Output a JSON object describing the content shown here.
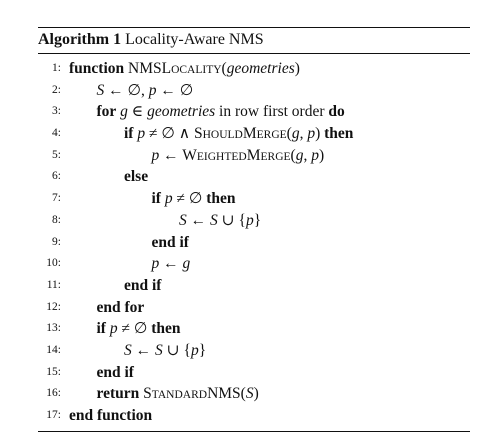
{
  "algorithm": {
    "label": "Algorithm 1",
    "title": "Locality-Aware NMS"
  },
  "lines": [
    {
      "no": "1:",
      "indent": 0,
      "parts": [
        {
          "t": "function",
          "s": "kw"
        },
        {
          "t": " NMS",
          "s": "rm"
        },
        {
          "t": "L",
          "s": "sc-big"
        },
        {
          "t": "OCALITY",
          "s": "sc-small"
        },
        {
          "t": "(",
          "s": "rm"
        },
        {
          "t": "geometries",
          "s": "m"
        },
        {
          "t": ")",
          "s": "rm"
        }
      ]
    },
    {
      "no": "2:",
      "indent": 1,
      "parts": [
        {
          "t": "S",
          "s": "m"
        },
        {
          "t": " ← ∅,  ",
          "s": "rm"
        },
        {
          "t": "p",
          "s": "m"
        },
        {
          "t": " ← ∅",
          "s": "rm"
        }
      ]
    },
    {
      "no": "3:",
      "indent": 1,
      "parts": [
        {
          "t": "for",
          "s": "kw"
        },
        {
          "t": " g",
          "s": "m"
        },
        {
          "t": " ∈ ",
          "s": "rm"
        },
        {
          "t": "geometries",
          "s": "m"
        },
        {
          "t": " in row first order ",
          "s": "rm"
        },
        {
          "t": "do",
          "s": "kw"
        }
      ]
    },
    {
      "no": "4:",
      "indent": 2,
      "parts": [
        {
          "t": "if",
          "s": "kw"
        },
        {
          "t": " p",
          "s": "m"
        },
        {
          "t": " ≠ ∅ ∧ ",
          "s": "rm"
        },
        {
          "t": "S",
          "s": "sc-big"
        },
        {
          "t": "HOULD",
          "s": "sc-small"
        },
        {
          "t": "M",
          "s": "sc-big"
        },
        {
          "t": "ERGE",
          "s": "sc-small"
        },
        {
          "t": "(",
          "s": "rm"
        },
        {
          "t": "g",
          "s": "m"
        },
        {
          "t": ", ",
          "s": "rm"
        },
        {
          "t": "p",
          "s": "m"
        },
        {
          "t": ") ",
          "s": "rm"
        },
        {
          "t": "then",
          "s": "kw"
        }
      ]
    },
    {
      "no": "5:",
      "indent": 3,
      "parts": [
        {
          "t": "p",
          "s": "m"
        },
        {
          "t": " ← ",
          "s": "rm"
        },
        {
          "t": "W",
          "s": "sc-big"
        },
        {
          "t": "EIGHTED",
          "s": "sc-small"
        },
        {
          "t": "M",
          "s": "sc-big"
        },
        {
          "t": "ERGE",
          "s": "sc-small"
        },
        {
          "t": "(",
          "s": "rm"
        },
        {
          "t": "g",
          "s": "m"
        },
        {
          "t": ", ",
          "s": "rm"
        },
        {
          "t": "p",
          "s": "m"
        },
        {
          "t": ")",
          "s": "rm"
        }
      ]
    },
    {
      "no": "6:",
      "indent": 2,
      "parts": [
        {
          "t": "else",
          "s": "kw"
        }
      ]
    },
    {
      "no": "7:",
      "indent": 3,
      "parts": [
        {
          "t": "if",
          "s": "kw"
        },
        {
          "t": " p",
          "s": "m"
        },
        {
          "t": " ≠ ∅ ",
          "s": "rm"
        },
        {
          "t": "then",
          "s": "kw"
        }
      ]
    },
    {
      "no": "8:",
      "indent": 4,
      "parts": [
        {
          "t": "S",
          "s": "m"
        },
        {
          "t": " ← ",
          "s": "rm"
        },
        {
          "t": "S",
          "s": "m"
        },
        {
          "t": " ∪ {",
          "s": "rm"
        },
        {
          "t": "p",
          "s": "m"
        },
        {
          "t": "}",
          "s": "rm"
        }
      ]
    },
    {
      "no": "9:",
      "indent": 3,
      "parts": [
        {
          "t": "end if",
          "s": "kw"
        }
      ]
    },
    {
      "no": "10:",
      "indent": 3,
      "parts": [
        {
          "t": "p",
          "s": "m"
        },
        {
          "t": " ← ",
          "s": "rm"
        },
        {
          "t": "g",
          "s": "m"
        }
      ]
    },
    {
      "no": "11:",
      "indent": 2,
      "parts": [
        {
          "t": "end if",
          "s": "kw"
        }
      ]
    },
    {
      "no": "12:",
      "indent": 1,
      "parts": [
        {
          "t": "end for",
          "s": "kw"
        }
      ]
    },
    {
      "no": "13:",
      "indent": 1,
      "parts": [
        {
          "t": "if",
          "s": "kw"
        },
        {
          "t": " p",
          "s": "m"
        },
        {
          "t": " ≠ ∅ ",
          "s": "rm"
        },
        {
          "t": "then",
          "s": "kw"
        }
      ]
    },
    {
      "no": "14:",
      "indent": 2,
      "parts": [
        {
          "t": "S",
          "s": "m"
        },
        {
          "t": " ← ",
          "s": "rm"
        },
        {
          "t": "S",
          "s": "m"
        },
        {
          "t": " ∪ {",
          "s": "rm"
        },
        {
          "t": "p",
          "s": "m"
        },
        {
          "t": "}",
          "s": "rm"
        }
      ]
    },
    {
      "no": "15:",
      "indent": 1,
      "parts": [
        {
          "t": "end if",
          "s": "kw"
        }
      ]
    },
    {
      "no": "16:",
      "indent": 1,
      "parts": [
        {
          "t": "return",
          "s": "kw"
        },
        {
          "t": " S",
          "s": "sc-big"
        },
        {
          "t": "TANDARD",
          "s": "sc-small"
        },
        {
          "t": "NMS(",
          "s": "rm"
        },
        {
          "t": "S",
          "s": "m"
        },
        {
          "t": ")",
          "s": "rm"
        }
      ]
    },
    {
      "no": "17:",
      "indent": 0,
      "parts": [
        {
          "t": "end function",
          "s": "kw"
        }
      ]
    }
  ]
}
